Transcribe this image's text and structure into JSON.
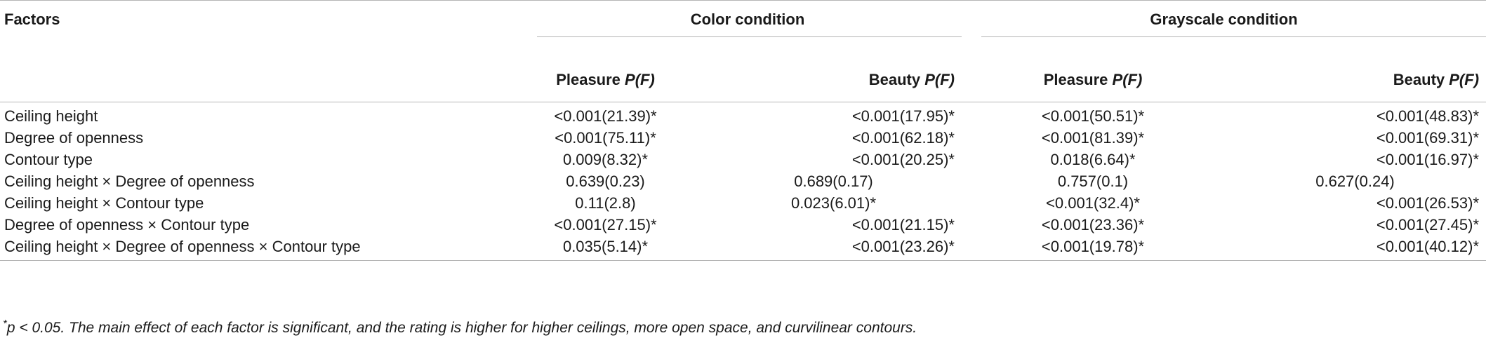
{
  "table": {
    "factors_header": "Factors",
    "groups": [
      {
        "label": "Color condition"
      },
      {
        "label": "Grayscale condition"
      }
    ],
    "subheaders": [
      {
        "prefix": "Pleasure ",
        "suffix": "P(F)"
      },
      {
        "prefix": "Beauty ",
        "suffix": "P(F)"
      },
      {
        "prefix": "Pleasure ",
        "suffix": "P(F)"
      },
      {
        "prefix": "Beauty ",
        "suffix": "P(F)"
      }
    ],
    "rows": [
      {
        "factor": "Ceiling height",
        "cells": [
          "<0.001(21.39)*",
          "<0.001(17.95)*",
          "<0.001(50.51)*",
          "<0.001(48.83)*"
        ]
      },
      {
        "factor": "Degree of openness",
        "cells": [
          "<0.001(75.11)*",
          "<0.001(62.18)*",
          "<0.001(81.39)*",
          "<0.001(69.31)*"
        ]
      },
      {
        "factor": "Contour type",
        "cells": [
          "0.009(8.32)*",
          "<0.001(20.25)*",
          "0.018(6.64)*",
          "<0.001(16.97)*"
        ]
      },
      {
        "factor": "Ceiling height × Degree of openness",
        "cells": [
          "0.639(0.23)",
          "0.689(0.17)",
          "0.757(0.1)",
          "0.627(0.24)"
        ]
      },
      {
        "factor": "Ceiling height × Contour type",
        "cells": [
          "0.11(2.8)",
          "0.023(6.01)*",
          "<0.001(32.4)*",
          "<0.001(26.53)*"
        ]
      },
      {
        "factor": "Degree of openness × Contour type",
        "cells": [
          "<0.001(27.15)*",
          "<0.001(21.15)*",
          "<0.001(23.36)*",
          "<0.001(27.45)*"
        ]
      },
      {
        "factor": "Ceiling height × Degree of openness × Contour type",
        "cells": [
          "0.035(5.14)*",
          "<0.001(23.26)*",
          "<0.001(19.78)*",
          "<0.001(40.12)*"
        ]
      }
    ]
  },
  "footnote": {
    "mark": "*",
    "text": "p < 0.05. The main effect of each factor is significant, and the rating is higher for higher ceilings, more open space, and curvilinear contours."
  }
}
